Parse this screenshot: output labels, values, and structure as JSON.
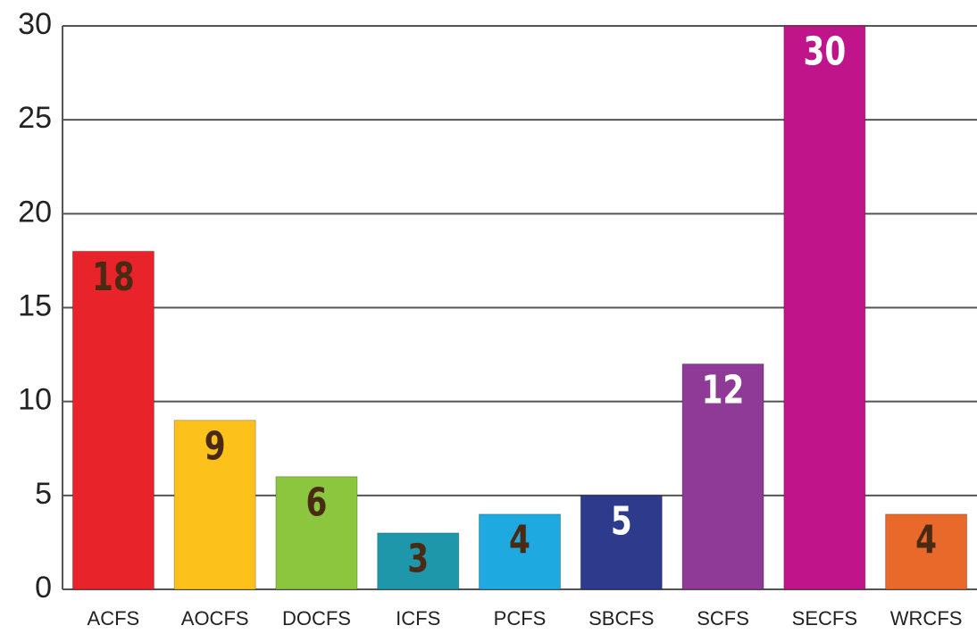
{
  "chart_data": {
    "type": "bar",
    "categories": [
      "ACFS",
      "AOCFS",
      "DOCFS",
      "ICFS",
      "PCFS",
      "SBCFS",
      "SCFS",
      "SECFS",
      "WRCFS"
    ],
    "values": [
      18,
      9,
      6,
      3,
      4,
      5,
      12,
      30,
      4
    ],
    "colors": [
      "#e8232a",
      "#fcc21b",
      "#8cc63f",
      "#1e97ab",
      "#1ea9e1",
      "#2e3a8c",
      "#8e3a96",
      "#c0158a",
      "#e8692a"
    ],
    "label_colors": [
      "#4a2a12",
      "#4a2a12",
      "#4a2a12",
      "#4a2a12",
      "#4a2a12",
      "#ffffff",
      "#ffffff",
      "#ffffff",
      "#4a2a12"
    ],
    "ylim": [
      0,
      30
    ],
    "yticks": [
      0,
      5,
      10,
      15,
      20,
      25,
      30
    ],
    "grid": true
  }
}
